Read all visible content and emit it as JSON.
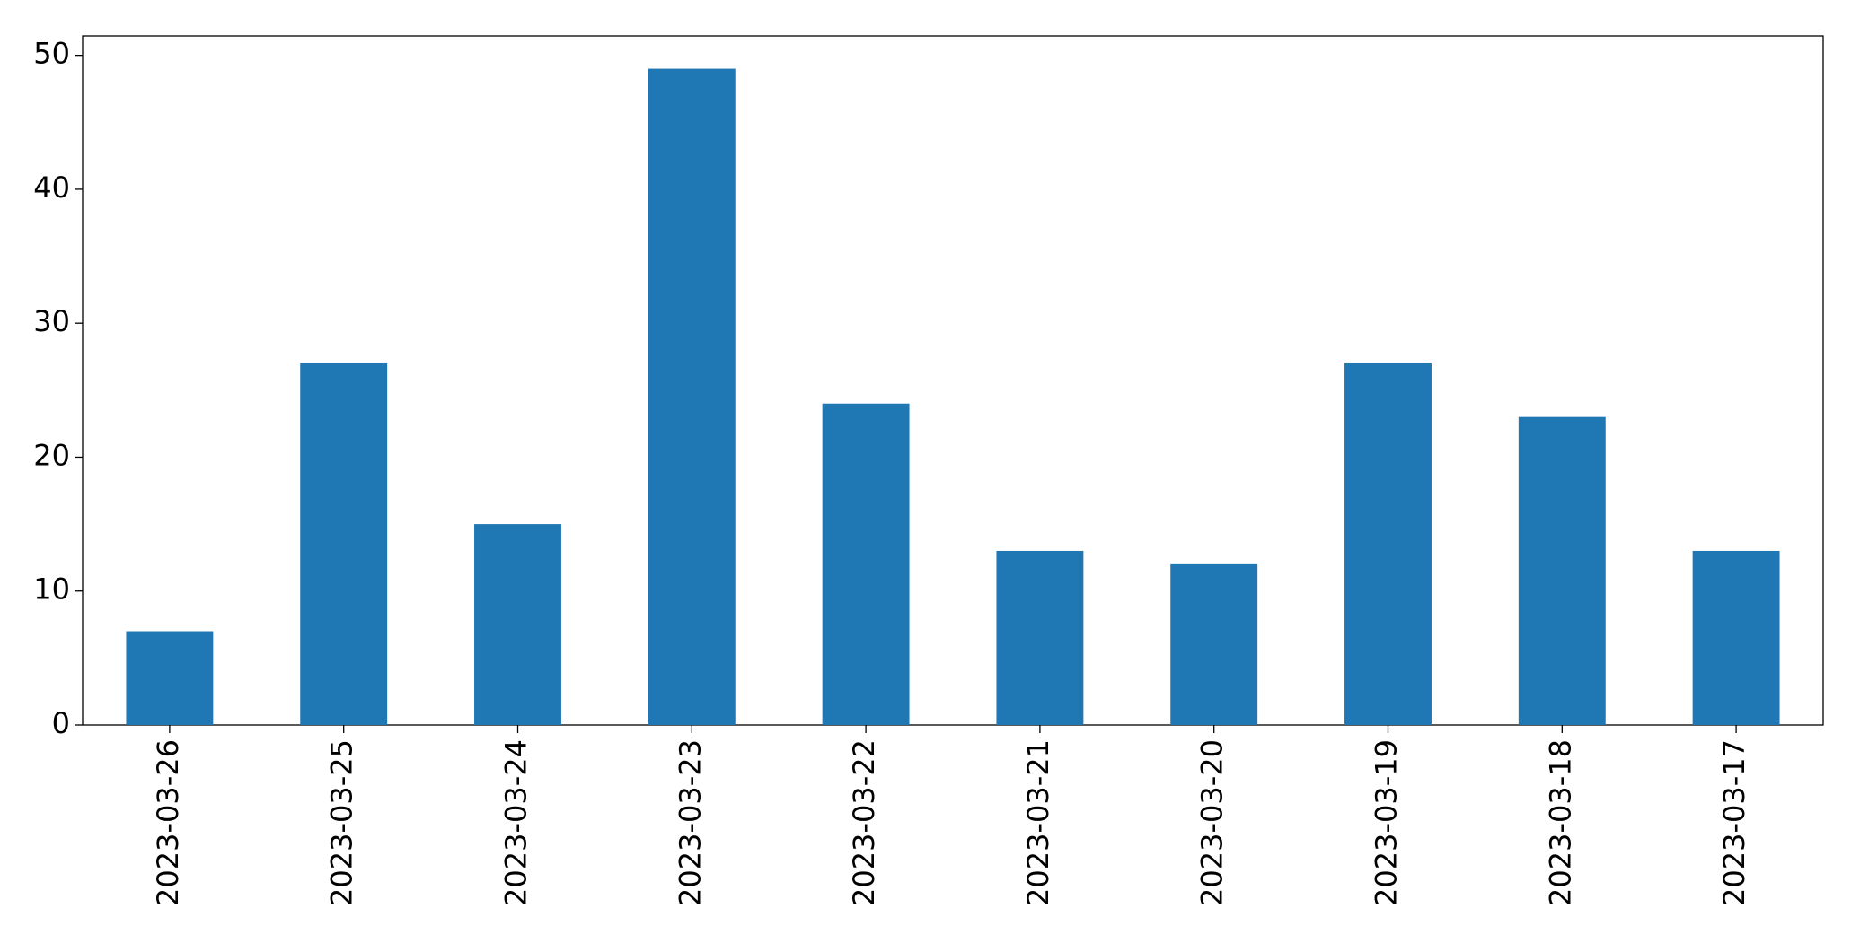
{
  "chart_data": {
    "type": "bar",
    "categories": [
      "2023-03-26",
      "2023-03-25",
      "2023-03-24",
      "2023-03-23",
      "2023-03-22",
      "2023-03-21",
      "2023-03-20",
      "2023-03-19",
      "2023-03-18",
      "2023-03-17"
    ],
    "values": [
      7,
      27,
      15,
      49,
      24,
      13,
      12,
      27,
      23,
      13
    ],
    "color": "#1f77b4",
    "ylim": [
      0,
      51.45
    ],
    "yticks": [
      0,
      10,
      20,
      30,
      40,
      50
    ],
    "grid": false
  }
}
